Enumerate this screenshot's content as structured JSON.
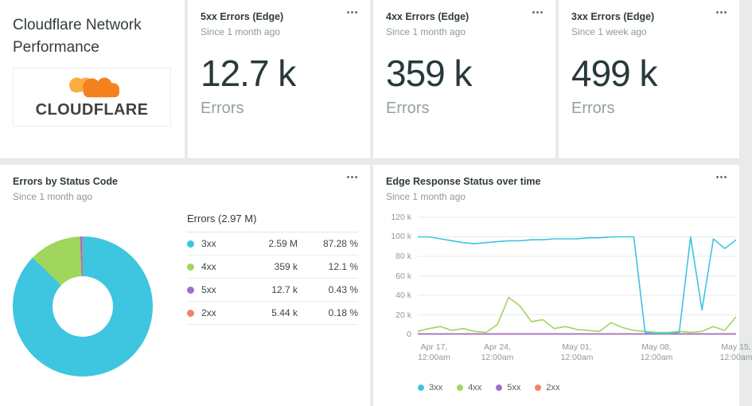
{
  "ui": {
    "menu_icon": "⋯"
  },
  "title_card": {
    "title": "Cloudflare Network Performance",
    "logo_text": "CLOUDFLARE"
  },
  "kpi_cards": [
    {
      "title": "5xx Errors (Edge)",
      "subtitle": "Since 1 month ago",
      "value": "12.7 k",
      "unit": "Errors"
    },
    {
      "title": "4xx Errors (Edge)",
      "subtitle": "Since 1 month ago",
      "value": "359 k",
      "unit": "Errors"
    },
    {
      "title": "3xx Errors (Edge)",
      "subtitle": "Since 1 week ago",
      "value": "499 k",
      "unit": "Errors"
    }
  ],
  "pie_card": {
    "title": "Errors by Status Code",
    "subtitle": "Since 1 month ago"
  },
  "line_card": {
    "title": "Edge Response Status over time",
    "subtitle": "Since 1 month ago"
  },
  "colors": {
    "cyan": "#3ec5e0",
    "green": "#a0d55e",
    "purple": "#a06fce",
    "orange": "#f2836b",
    "cloud_main": "#f6821f",
    "cloud_light": "#fbad41",
    "page_bg": "#e9ebeb",
    "card_bg": "#ffffff"
  },
  "chart_data": [
    {
      "type": "pie",
      "donut": true,
      "title": "Errors by Status Code",
      "total_label": "Errors (2.97 M)",
      "labels": [
        "3xx",
        "4xx",
        "5xx",
        "2xx"
      ],
      "values_display": [
        "2.59 M",
        "359 k",
        "12.7 k",
        "5.44 k"
      ],
      "percents": [
        87.28,
        12.1,
        0.43,
        0.18
      ],
      "percent_labels": [
        "87.28 %",
        "12.1 %",
        "0.43 %",
        "0.18 %"
      ],
      "colors": [
        "#3ec5e0",
        "#a0d55e",
        "#a06fce",
        "#f2836b"
      ],
      "legend_position": "right"
    },
    {
      "type": "line",
      "title": "Edge Response Status over time",
      "ylim": [
        0,
        120
      ],
      "y_unit": "k",
      "grid": true,
      "y_ticks": [
        "0",
        "20 k",
        "40 k",
        "60 k",
        "80 k",
        "100 k",
        "120 k"
      ],
      "x_tick_labels": [
        [
          "Apr 17,",
          "12:00am"
        ],
        [
          "Apr 24,",
          "12:00am"
        ],
        [
          "May 01,",
          "12:00am"
        ],
        [
          "May 08,",
          "12:00am"
        ],
        [
          "May 15,",
          "12:00am"
        ]
      ],
      "legend": [
        "3xx",
        "4xx",
        "5xx",
        "2xx"
      ],
      "legend_position": "bottom",
      "series": [
        {
          "name": "3xx",
          "color": "#3ec5e0",
          "values": [
            100,
            100,
            98,
            96,
            94,
            93,
            94,
            95,
            96,
            96,
            97,
            97,
            98,
            98,
            98,
            99,
            99,
            100,
            100,
            100,
            2,
            1,
            1,
            2,
            100,
            25,
            98,
            88,
            97
          ]
        },
        {
          "name": "4xx",
          "color": "#a0d55e",
          "values": [
            3,
            6,
            8,
            4,
            6,
            3,
            2,
            10,
            38,
            29,
            13,
            15,
            6,
            8,
            5,
            4,
            3,
            12,
            7,
            4,
            3,
            2,
            2,
            3,
            2,
            3,
            8,
            4,
            18
          ]
        },
        {
          "name": "5xx",
          "color": "#a06fce",
          "values": [
            0.5,
            0.5,
            0.5,
            0.5,
            0.5,
            0.5,
            0.5,
            0.5,
            0.5,
            0.5,
            0.5,
            0.5,
            0.5,
            0.5,
            0.5,
            0.5,
            0.5,
            0.5,
            0.5,
            0.5,
            0.5,
            0.5,
            0.5,
            0.5,
            0.5,
            0.5,
            0.5,
            0.5,
            0.5
          ]
        },
        {
          "name": "2xx",
          "color": "#f2836b",
          "values": [
            0.3,
            0.3,
            0.3,
            0.3,
            0.3,
            0.3,
            0.3,
            0.3,
            0.3,
            0.3,
            0.3,
            0.3,
            0.3,
            0.3,
            0.3,
            0.3,
            0.3,
            0.3,
            0.3,
            0.3,
            0.3,
            0.3,
            0.3,
            0.3,
            0.3,
            0.3,
            0.3,
            0.3,
            0.3
          ]
        }
      ]
    }
  ]
}
